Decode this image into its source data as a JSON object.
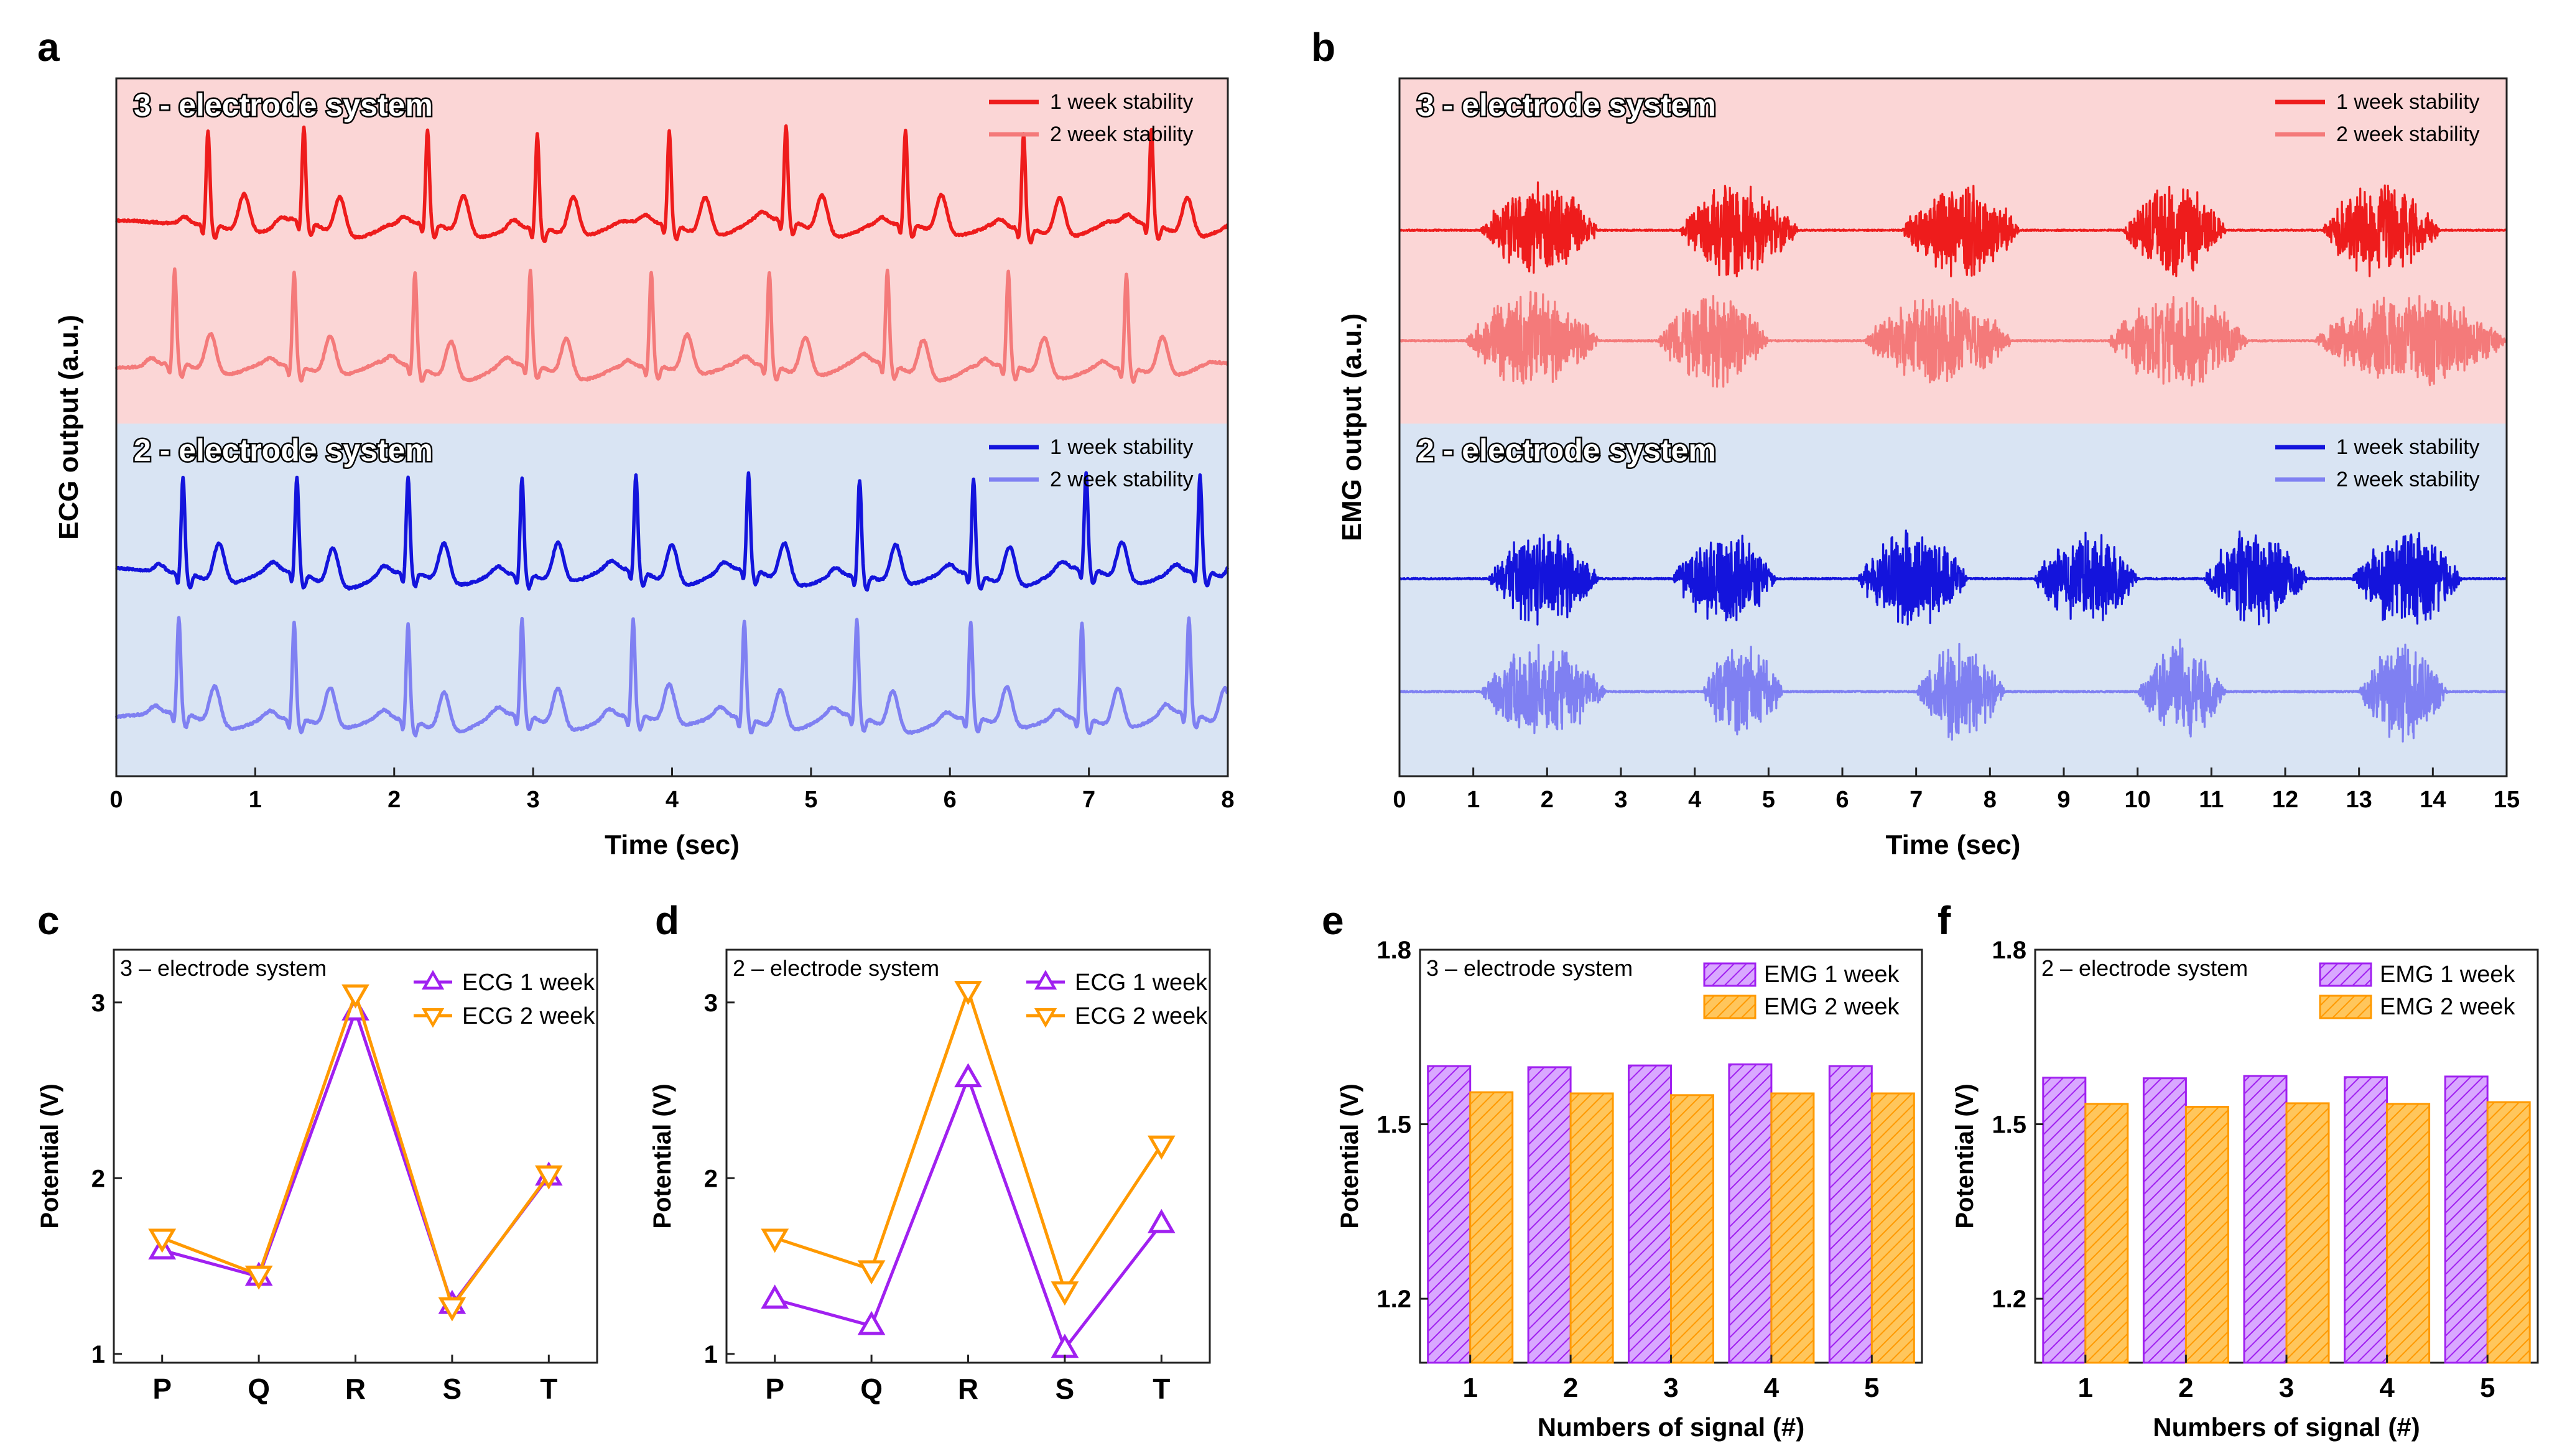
{
  "colors": {
    "red_dark": "#ee1c1c",
    "red_light": "#f47a7a",
    "red_bg": "#fbd6d6",
    "blue_dark": "#1414dc",
    "blue_light": "#7f80f2",
    "blue_bg": "#d9e4f3",
    "purple": "#a020f0",
    "orange": "#ff9900",
    "purple_fill": "#d9a8ff",
    "orange_fill": "#ffc65c"
  },
  "chart_data": [
    {
      "id": "a",
      "panel_label": "a",
      "type": "line",
      "ylabel": "ECG output (a.u.)",
      "xlabel": "Time (sec)",
      "xlim": [
        0,
        8
      ],
      "xticks": [
        "0",
        "1",
        "2",
        "3",
        "4",
        "5",
        "6",
        "7",
        "8"
      ],
      "groups": [
        {
          "title": "3 - electrode system",
          "series": [
            {
              "name": "1 week stability",
              "color": "#ee1c1c",
              "beats": [
                0.66,
                1.35,
                2.24,
                3.03,
                3.98,
                4.82,
                5.68,
                6.53,
                7.45
              ]
            },
            {
              "name": "2 week stability",
              "color": "#f47a7a",
              "beats": [
                0.42,
                1.28,
                2.15,
                2.98,
                3.85,
                4.7,
                5.55,
                6.42,
                7.27
              ]
            }
          ]
        },
        {
          "title": "2 - electrode system",
          "series": [
            {
              "name": "1 week stability",
              "color": "#1414dc",
              "beats": [
                0.48,
                1.3,
                2.1,
                2.92,
                3.74,
                4.55,
                5.35,
                6.17,
                6.98,
                7.8
              ]
            },
            {
              "name": "2 week stability",
              "color": "#7f80f2",
              "beats": [
                0.45,
                1.28,
                2.1,
                2.92,
                3.72,
                4.52,
                5.33,
                6.15,
                6.95,
                7.72
              ]
            }
          ]
        }
      ]
    },
    {
      "id": "b",
      "panel_label": "b",
      "type": "line",
      "ylabel": "EMG output (a.u.)",
      "xlabel": "Time (sec)",
      "xlim": [
        0,
        15
      ],
      "xticks": [
        "0",
        "1",
        "2",
        "3",
        "4",
        "5",
        "6",
        "7",
        "8",
        "9",
        "10",
        "11",
        "12",
        "13",
        "14",
        "15"
      ],
      "groups": [
        {
          "title": "3 - electrode system",
          "series": [
            {
              "name": "1 week stability",
              "color": "#ee1c1c",
              "bursts": [
                [
                  1.1,
                  2.7
                ],
                [
                  3.8,
                  5.4
                ],
                [
                  6.8,
                  8.4
                ],
                [
                  9.8,
                  11.2
                ],
                [
                  12.5,
                  14.1
                ]
              ]
            },
            {
              "name": "2 week stability",
              "color": "#f47a7a",
              "bursts": [
                [
                  0.9,
                  2.7
                ],
                [
                  3.5,
                  5.0
                ],
                [
                  6.3,
                  8.3
                ],
                [
                  9.6,
                  11.5
                ],
                [
                  12.4,
                  15.0
                ]
              ]
            }
          ]
        },
        {
          "title": "2 - electrode system",
          "series": [
            {
              "name": "1 week stability",
              "color": "#1414dc",
              "bursts": [
                [
                  1.2,
                  2.7
                ],
                [
                  3.7,
                  5.1
                ],
                [
                  6.2,
                  7.7
                ],
                [
                  8.6,
                  10.0
                ],
                [
                  10.9,
                  12.3
                ],
                [
                  12.9,
                  14.4
                ]
              ]
            },
            {
              "name": "2 week stability",
              "color": "#7f80f2",
              "bursts": [
                [
                  1.1,
                  2.8
                ],
                [
                  4.1,
                  5.2
                ],
                [
                  7.0,
                  8.2
                ],
                [
                  10.0,
                  11.2
                ],
                [
                  13.0,
                  14.2
                ]
              ]
            }
          ]
        }
      ]
    },
    {
      "id": "c",
      "panel_label": "c",
      "type": "line",
      "title": "3 – electrode system",
      "ylabel": "Potential (V)",
      "xlabel": "",
      "categories": [
        "P",
        "Q",
        "R",
        "S",
        "T"
      ],
      "ylim": [
        0.95,
        3.3
      ],
      "yticks": [
        1,
        2,
        3
      ],
      "series": [
        {
          "name": "ECG 1 week",
          "marker": "triangle-up",
          "color": "#a020f0",
          "values": [
            1.59,
            1.44,
            2.95,
            1.28,
            2.01
          ]
        },
        {
          "name": "ECG 2 week",
          "marker": "triangle-down",
          "color": "#ff9900",
          "values": [
            1.66,
            1.45,
            3.05,
            1.27,
            2.02
          ]
        }
      ]
    },
    {
      "id": "d",
      "panel_label": "d",
      "type": "line",
      "title": "2 – electrode system",
      "ylabel": "Potential (V)",
      "xlabel": "",
      "categories": [
        "P",
        "Q",
        "R",
        "S",
        "T"
      ],
      "ylim": [
        0.95,
        3.3
      ],
      "yticks": [
        1,
        2,
        3
      ],
      "series": [
        {
          "name": "ECG 1 week",
          "marker": "triangle-up",
          "color": "#a020f0",
          "values": [
            1.31,
            1.16,
            2.57,
            1.03,
            1.74
          ]
        },
        {
          "name": "ECG 2 week",
          "marker": "triangle-down",
          "color": "#ff9900",
          "values": [
            1.66,
            1.48,
            3.07,
            1.36,
            2.19
          ]
        }
      ]
    },
    {
      "id": "e",
      "panel_label": "e",
      "type": "bar",
      "title": "3 – electrode system",
      "ylabel": "Potential (V)",
      "xlabel": "Numbers of signal (#)",
      "categories": [
        "1",
        "2",
        "3",
        "4",
        "5"
      ],
      "ylim": [
        1.09,
        1.8
      ],
      "yticks": [
        "1.2",
        "1.5",
        "1.8"
      ],
      "series": [
        {
          "name": "EMG 1 week",
          "color": "#a020f0",
          "values": [
            1.6,
            1.598,
            1.601,
            1.603,
            1.6
          ]
        },
        {
          "name": "EMG 2 week",
          "color": "#ff9900",
          "values": [
            1.555,
            1.553,
            1.55,
            1.553,
            1.553
          ]
        }
      ]
    },
    {
      "id": "f",
      "panel_label": "f",
      "type": "bar",
      "title": "2 – electrode system",
      "ylabel": "Potential (V)",
      "xlabel": "Numbers of signal (#)",
      "categories": [
        "1",
        "2",
        "3",
        "4",
        "5"
      ],
      "ylim": [
        1.09,
        1.8
      ],
      "yticks": [
        "1.2",
        "1.5",
        "1.8"
      ],
      "series": [
        {
          "name": "EMG 1 week",
          "color": "#a020f0",
          "values": [
            1.58,
            1.579,
            1.583,
            1.581,
            1.582
          ]
        },
        {
          "name": "EMG 2 week",
          "color": "#ff9900",
          "values": [
            1.535,
            1.53,
            1.536,
            1.535,
            1.538
          ]
        }
      ]
    }
  ]
}
